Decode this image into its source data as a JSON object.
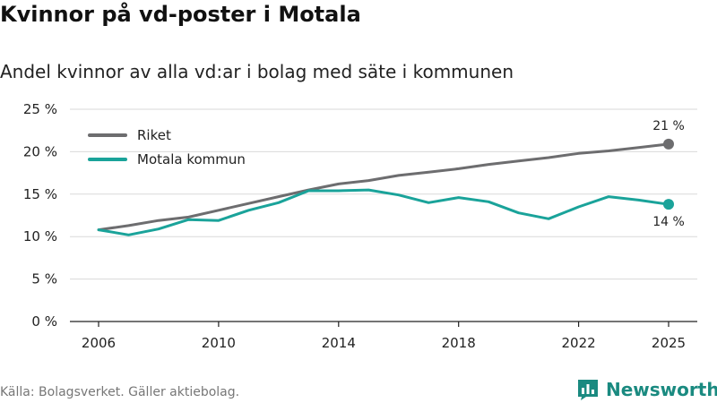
{
  "title": "Kvinnor på vd-poster i Motala",
  "subtitle": "Andel kvinnor av alla vd:ar i bolag med säte i kommunen",
  "source": "Källa: Bolagsverket. Gäller aktiebolag.",
  "brand": {
    "name": "Newsworthy",
    "icon": "newsworthy-logo-icon"
  },
  "colors": {
    "riket": "#6d6d6f",
    "motala": "#1aa39a",
    "grid": "#d9d9d9",
    "axis": "#222222",
    "brand": "#1a8a80"
  },
  "chart_data": {
    "type": "line",
    "title": "Kvinnor på vd-poster i Motala",
    "subtitle": "Andel kvinnor av alla vd:ar i bolag med säte i kommunen",
    "xlabel": "",
    "ylabel": "",
    "x": [
      2006,
      2007,
      2008,
      2009,
      2010,
      2011,
      2012,
      2013,
      2014,
      2015,
      2016,
      2017,
      2018,
      2019,
      2020,
      2021,
      2022,
      2023,
      2024,
      2025
    ],
    "xticks": [
      2006,
      2010,
      2014,
      2018,
      2022,
      2025
    ],
    "xlim": [
      2006,
      2025
    ],
    "yticks": [
      0,
      5,
      10,
      15,
      20,
      25
    ],
    "ytick_labels": [
      "0 %",
      "5 %",
      "10 %",
      "15 %",
      "20 %",
      "25 %"
    ],
    "ylim": [
      0,
      25
    ],
    "grid": true,
    "legend_position": "top-left",
    "series": [
      {
        "name": "Riket",
        "color": "#6d6d6f",
        "values": [
          10.8,
          11.3,
          11.9,
          12.3,
          13.1,
          13.9,
          14.7,
          15.5,
          16.2,
          16.6,
          17.2,
          17.6,
          18.0,
          18.5,
          18.9,
          19.3,
          19.8,
          20.1,
          20.5,
          20.9
        ],
        "end_label": "21 %"
      },
      {
        "name": "Motala kommun",
        "color": "#1aa39a",
        "values": [
          10.8,
          10.2,
          10.9,
          12.0,
          11.9,
          13.1,
          14.0,
          15.4,
          15.4,
          15.5,
          14.9,
          14.0,
          14.6,
          14.1,
          12.8,
          12.1,
          13.5,
          14.7,
          14.3,
          13.8
        ],
        "end_label": "14 %"
      }
    ]
  }
}
